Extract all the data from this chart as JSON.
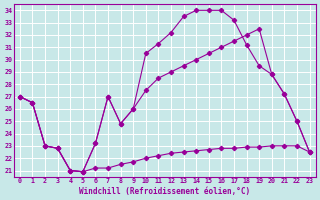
{
  "xlabel": "Windchill (Refroidissement éolien,°C)",
  "xlim": [
    -0.5,
    23.5
  ],
  "ylim": [
    20.5,
    34.5
  ],
  "xticks": [
    0,
    1,
    2,
    3,
    4,
    5,
    6,
    7,
    8,
    9,
    10,
    11,
    12,
    13,
    14,
    15,
    16,
    17,
    18,
    19,
    20,
    21,
    22,
    23
  ],
  "yticks": [
    21,
    22,
    23,
    24,
    25,
    26,
    27,
    28,
    29,
    30,
    31,
    32,
    33,
    34
  ],
  "bg_color": "#c8e8e8",
  "line_color": "#990099",
  "grid_color": "#ffffff",
  "line1_x": [
    0,
    1,
    2,
    3,
    4,
    5,
    6,
    7,
    8,
    9,
    10,
    11,
    12,
    13,
    14,
    15,
    16,
    17,
    18,
    19,
    20,
    21,
    22,
    23
  ],
  "line1_y": [
    27.0,
    26.5,
    23.0,
    22.8,
    21.0,
    20.9,
    23.2,
    27.0,
    24.8,
    26.0,
    30.5,
    31.3,
    32.2,
    33.5,
    34.0,
    34.0,
    34.0,
    33.2,
    31.2,
    29.5,
    28.8,
    27.2,
    25.0,
    22.5
  ],
  "line2_x": [
    0,
    1,
    2,
    3,
    4,
    5,
    6,
    7,
    8,
    9,
    10,
    11,
    12,
    13,
    14,
    15,
    16,
    17,
    18,
    19,
    20,
    21,
    22,
    23
  ],
  "line2_y": [
    27.0,
    26.5,
    23.0,
    22.8,
    21.0,
    20.9,
    23.2,
    27.0,
    24.8,
    26.0,
    27.5,
    28.5,
    29.0,
    29.5,
    30.0,
    30.5,
    31.0,
    31.5,
    32.0,
    32.5,
    28.8,
    27.2,
    25.0,
    22.5
  ],
  "line3_x": [
    0,
    1,
    2,
    3,
    4,
    5,
    6,
    7,
    8,
    9,
    10,
    11,
    12,
    13,
    14,
    15,
    16,
    17,
    18,
    19,
    20,
    21,
    22,
    23
  ],
  "line3_y": [
    27.0,
    26.5,
    23.0,
    22.8,
    21.0,
    20.9,
    21.2,
    21.2,
    21.5,
    21.7,
    22.0,
    22.2,
    22.4,
    22.5,
    22.6,
    22.7,
    22.8,
    22.8,
    22.9,
    22.9,
    23.0,
    23.0,
    23.0,
    22.5
  ]
}
